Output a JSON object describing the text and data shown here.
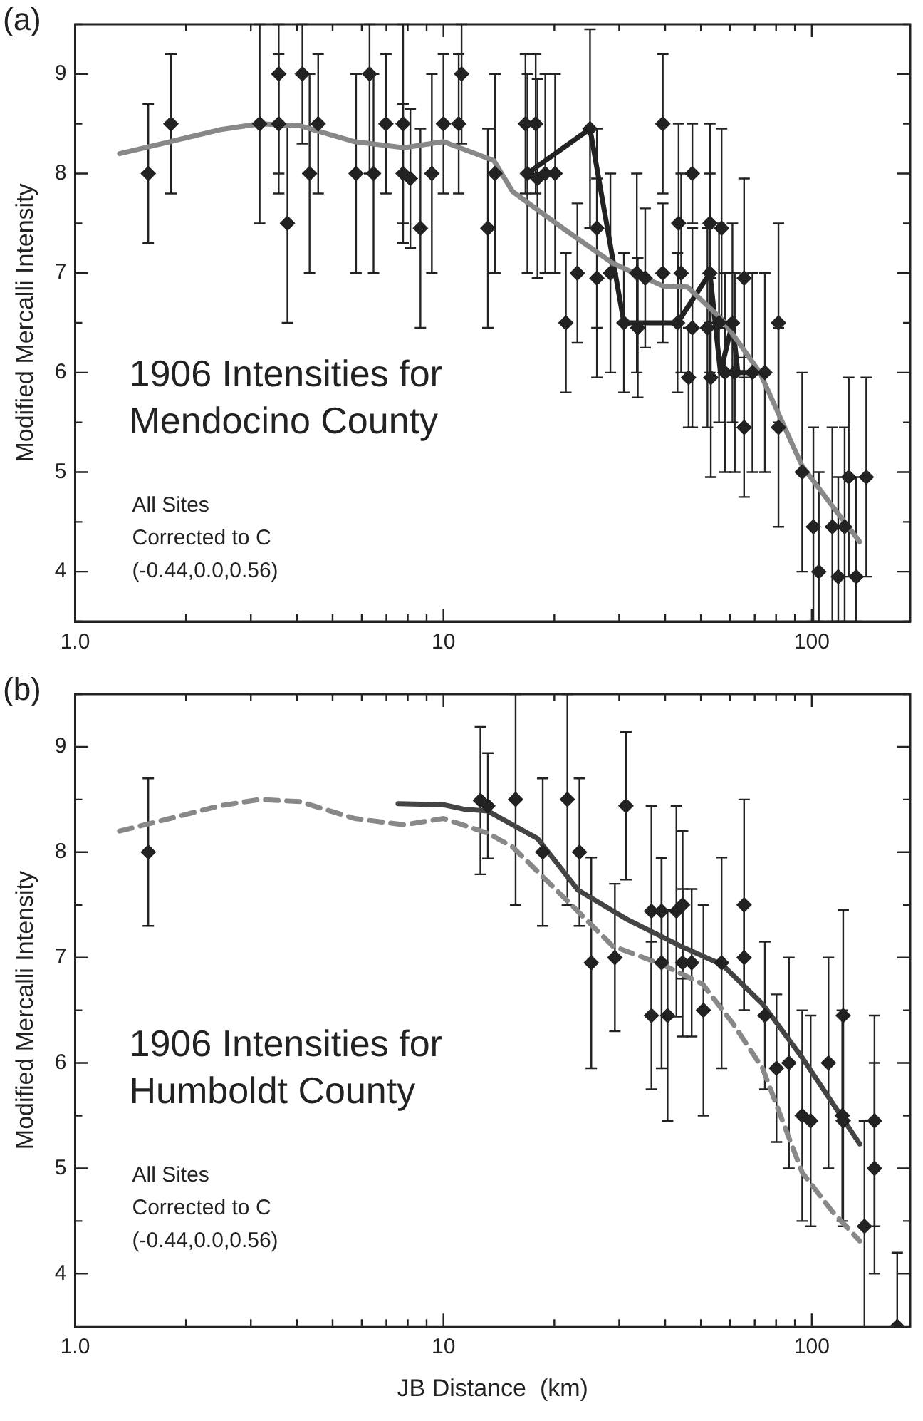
{
  "chart_data": [
    {
      "type": "scatter",
      "title": "(a)",
      "ylabel": "Modified Mercalli Intensity",
      "annotations": [
        "1906 Intensities for\nMendocino County",
        "All Sites\nCorrected to C\n(-0.44,0.0,0.56)"
      ],
      "log": "x",
      "grid": false,
      "legend": false,
      "marker": "diamond",
      "xlim": [
        1,
        185
      ],
      "ylim": [
        3.5,
        9.5
      ],
      "xticks": [
        {
          "value": 1,
          "label": "1.0"
        },
        {
          "value": 2,
          "label": null
        },
        {
          "value": 3,
          "label": null
        },
        {
          "value": 4,
          "label": null
        },
        {
          "value": 5,
          "label": null
        },
        {
          "value": 6,
          "label": null
        },
        {
          "value": 7,
          "label": null
        },
        {
          "value": 8,
          "label": null
        },
        {
          "value": 9,
          "label": null
        },
        {
          "value": 10,
          "label": "10"
        },
        {
          "value": 20,
          "label": null
        },
        {
          "value": 30,
          "label": null
        },
        {
          "value": 40,
          "label": null
        },
        {
          "value": 50,
          "label": null
        },
        {
          "value": 60,
          "label": null
        },
        {
          "value": 70,
          "label": null
        },
        {
          "value": 80,
          "label": null
        },
        {
          "value": 90,
          "label": null
        },
        {
          "value": 100,
          "label": "100"
        }
      ],
      "yticks": [
        {
          "value": 3.5,
          "label": null
        },
        4,
        {
          "value": 4.5,
          "label": null
        },
        5,
        {
          "value": 5.5,
          "label": null
        },
        6,
        {
          "value": 6.5,
          "label": null
        },
        7,
        {
          "value": 7.5,
          "label": null
        },
        8,
        {
          "value": 8.5,
          "label": null
        },
        9,
        {
          "value": 9.5,
          "label": null
        }
      ],
      "series": [
        {
          "type": "line",
          "color": "#888888",
          "marker": "none",
          "line_style": "solid",
          "x": [
            1.32,
            1.81,
            2.47,
            3.17,
            4.07,
            5.74,
            7.83,
            10,
            13.7,
            15.4,
            21.1,
            28.8,
            39.4,
            46,
            57.2,
            64.8,
            72.3,
            94.2,
            113.7,
            135
          ],
          "values": [
            8.2,
            8.32,
            8.44,
            8.5,
            8.48,
            8.32,
            8.26,
            8.32,
            8.13,
            7.82,
            7.45,
            7.1,
            6.87,
            6.86,
            6.53,
            6.25,
            6.0,
            5.06,
            4.66,
            4.3
          ]
        },
        {
          "type": "line",
          "color": "#222222",
          "marker": "none",
          "line_style": "solid",
          "x": [
            16.9,
            25,
            30.9,
            43.2,
            52.9,
            56.5,
            60.9,
            63,
            74.6
          ],
          "values": [
            8.0,
            8.45,
            6.5,
            6.5,
            7.0,
            6.0,
            6.5,
            6.0,
            6.0
          ]
        },
        {
          "color": "#222222",
          "x": [
            1.58,
            1.82,
            3.17,
            3.57,
            3.57,
            3.77,
            4.14,
            4.33,
            4.57,
            5.79,
            6.3,
            6.46,
            6.98,
            7.77,
            7.77,
            8.13,
            8.66,
            9.3,
            10.0,
            11.0,
            11.2,
            13.2,
            13.8,
            16.7,
            17.8,
            16.9,
            18.0,
            18.9,
            20.1,
            21.5,
            23.1,
            25.0,
            26.1,
            26.1,
            28.4,
            30.9,
            33.5,
            33.7,
            35.3,
            39.4,
            39.4,
            43.5,
            44.2,
            43.2,
            46.3,
            47.4,
            47.4,
            52.9,
            52.9,
            52.1,
            53.2,
            56.9,
            56.0,
            60.9,
            58.1,
            61.8,
            65.5,
            65.5,
            69.0,
            74.6,
            81.2,
            81.2,
            94.2,
            101,
            104.5,
            113.7,
            118,
            122.8,
            126,
            132,
            140.6
          ],
          "values": [
            8.0,
            8.5,
            8.5,
            9.0,
            8.5,
            7.5,
            9.0,
            8.0,
            8.5,
            8.0,
            9.0,
            8.0,
            8.5,
            8.5,
            8.0,
            7.95,
            7.45,
            8.0,
            8.5,
            8.5,
            9.0,
            7.45,
            8.0,
            8.5,
            8.5,
            8.0,
            7.95,
            8.0,
            8.0,
            6.5,
            7.0,
            8.45,
            7.45,
            6.95,
            7.0,
            6.5,
            7.0,
            6.45,
            6.95,
            8.5,
            7.0,
            7.5,
            7.0,
            6.5,
            5.95,
            8.0,
            6.45,
            7.5,
            7.0,
            6.45,
            5.95,
            7.45,
            6.5,
            6.5,
            6.0,
            6.0,
            6.95,
            5.45,
            6.0,
            6.0,
            6.5,
            5.45,
            5.0,
            4.45,
            4.0,
            4.45,
            3.95,
            4.45,
            4.95,
            3.95,
            4.95
          ],
          "errors": [
            0.7,
            0.7,
            1.0,
            [
              8.0,
              9.5
            ],
            0.7,
            1.0,
            [
              8.3,
              9.5
            ],
            1.0,
            0.7,
            1.0,
            [
              8.0,
              9.5
            ],
            1.0,
            0.7,
            1.0,
            0.7,
            0.7,
            1.0,
            1.0,
            0.7,
            0.7,
            [
              8.3,
              9.5
            ],
            1.0,
            1.0,
            0.7,
            0.7,
            1.0,
            1.0,
            1.0,
            1.0,
            0.7,
            0.7,
            1.0,
            1.0,
            1.0,
            1.0,
            0.7,
            1.0,
            0.7,
            0.7,
            0.7,
            0.7,
            1.0,
            1.0,
            0.7,
            0.5,
            0.5,
            1.0,
            1.0,
            1.0,
            1.0,
            1.0,
            1.0,
            1.0,
            1.0,
            1.0,
            1.0,
            1.0,
            0.7,
            1.0,
            1.0,
            1.0,
            1.0,
            1.0,
            [
              3.5,
              5.45
            ],
            [
              3.5,
              5.0
            ],
            [
              3.5,
              5.45
            ],
            [
              3.5,
              4.95
            ],
            [
              3.5,
              5.45
            ],
            1.0,
            [
              3.5,
              4.95
            ],
            1.0
          ]
        }
      ]
    },
    {
      "type": "scatter",
      "title": "(b)",
      "xlabel": "JB Distance  (km)",
      "ylabel": "Modified Mercalli Intensity",
      "annotations": [
        "1906 Intensities for\nHumboldt County",
        "All Sites\nCorrected to C\n(-0.44,0.0,0.56)"
      ],
      "log": "x",
      "grid": false,
      "legend": false,
      "marker": "diamond",
      "xlim": [
        1,
        185
      ],
      "ylim": [
        3.5,
        9.5
      ],
      "xticks": [
        {
          "value": 1,
          "label": "1.0"
        },
        {
          "value": 2,
          "label": null
        },
        {
          "value": 3,
          "label": null
        },
        {
          "value": 4,
          "label": null
        },
        {
          "value": 5,
          "label": null
        },
        {
          "value": 6,
          "label": null
        },
        {
          "value": 7,
          "label": null
        },
        {
          "value": 8,
          "label": null
        },
        {
          "value": 9,
          "label": null
        },
        {
          "value": 10,
          "label": "10"
        },
        {
          "value": 20,
          "label": null
        },
        {
          "value": 30,
          "label": null
        },
        {
          "value": 40,
          "label": null
        },
        {
          "value": 50,
          "label": null
        },
        {
          "value": 60,
          "label": null
        },
        {
          "value": 70,
          "label": null
        },
        {
          "value": 80,
          "label": null
        },
        {
          "value": 90,
          "label": null
        },
        {
          "value": 100,
          "label": "100"
        }
      ],
      "yticks": [
        {
          "value": 3.5,
          "label": null
        },
        4,
        {
          "value": 4.5,
          "label": null
        },
        5,
        {
          "value": 5.5,
          "label": null
        },
        6,
        {
          "value": 6.5,
          "label": null
        },
        7,
        {
          "value": 7.5,
          "label": null
        },
        8,
        {
          "value": 8.5,
          "label": null
        },
        9,
        {
          "value": 9.5,
          "label": null
        }
      ],
      "series": [
        {
          "type": "line",
          "color": "#888888",
          "marker": "none",
          "line_style": "dashed",
          "x": [
            1.32,
            1.81,
            2.47,
            3.17,
            4.07,
            5.74,
            7.83,
            10,
            13.2,
            15.4,
            21.1,
            28.8,
            39.4,
            50.5,
            60.9,
            73.5,
            94.2,
            113.7,
            135
          ],
          "values": [
            8.2,
            8.32,
            8.44,
            8.5,
            8.48,
            8.32,
            8.26,
            8.32,
            8.18,
            8.05,
            7.58,
            7.11,
            6.93,
            6.75,
            6.38,
            5.95,
            4.96,
            4.59,
            4.31
          ]
        },
        {
          "type": "line",
          "color": "#444444",
          "marker": "none",
          "line_style": "solid",
          "x": [
            7.53,
            10,
            11.3,
            13.2,
            18,
            23.2,
            31.6,
            44.6,
            57.2,
            73.5,
            94.2,
            135
          ],
          "values": [
            8.46,
            8.45,
            8.41,
            8.39,
            8.13,
            7.64,
            7.36,
            7.1,
            6.93,
            6.56,
            6.05,
            5.23
          ]
        },
        {
          "color": "#222222",
          "x": [
            1.58,
            12.6,
            13.2,
            15.7,
            18.6,
            21.7,
            23.4,
            25.2,
            29.2,
            31.3,
            36.7,
            36.7,
            39.1,
            39.1,
            40.6,
            42.9,
            44.6,
            44.6,
            47.2,
            50.8,
            56.9,
            65.5,
            65.5,
            74.6,
            80.2,
            86.7,
            94.2,
            99.3,
            111,
            121.7,
            121,
            121.7,
            139,
            148,
            148,
            170.6
          ],
          "values": [
            8.0,
            8.49,
            8.44,
            8.5,
            8.0,
            8.5,
            8.0,
            6.95,
            7.0,
            8.44,
            7.44,
            6.45,
            7.44,
            6.95,
            6.45,
            7.44,
            7.5,
            6.95,
            6.95,
            6.5,
            6.95,
            7.5,
            7.0,
            6.45,
            5.95,
            6.0,
            5.5,
            5.45,
            6.0,
            6.45,
            5.5,
            5.45,
            4.45,
            5.45,
            5.0,
            3.5
          ],
          "errors": [
            0.7,
            0.7,
            0.5,
            1.0,
            0.7,
            1.0,
            0.7,
            1.0,
            0.7,
            0.7,
            1.0,
            0.7,
            0.5,
            1.0,
            1.0,
            1.0,
            0.7,
            0.7,
            0.7,
            1.0,
            1.0,
            1.0,
            0.5,
            0.7,
            0.7,
            1.0,
            1.0,
            1.0,
            1.0,
            1.0,
            1.0,
            1.0,
            [
              3.5,
              5.45
            ],
            1.0,
            1.0,
            [
              3.5,
              4.2
            ]
          ]
        }
      ]
    }
  ]
}
